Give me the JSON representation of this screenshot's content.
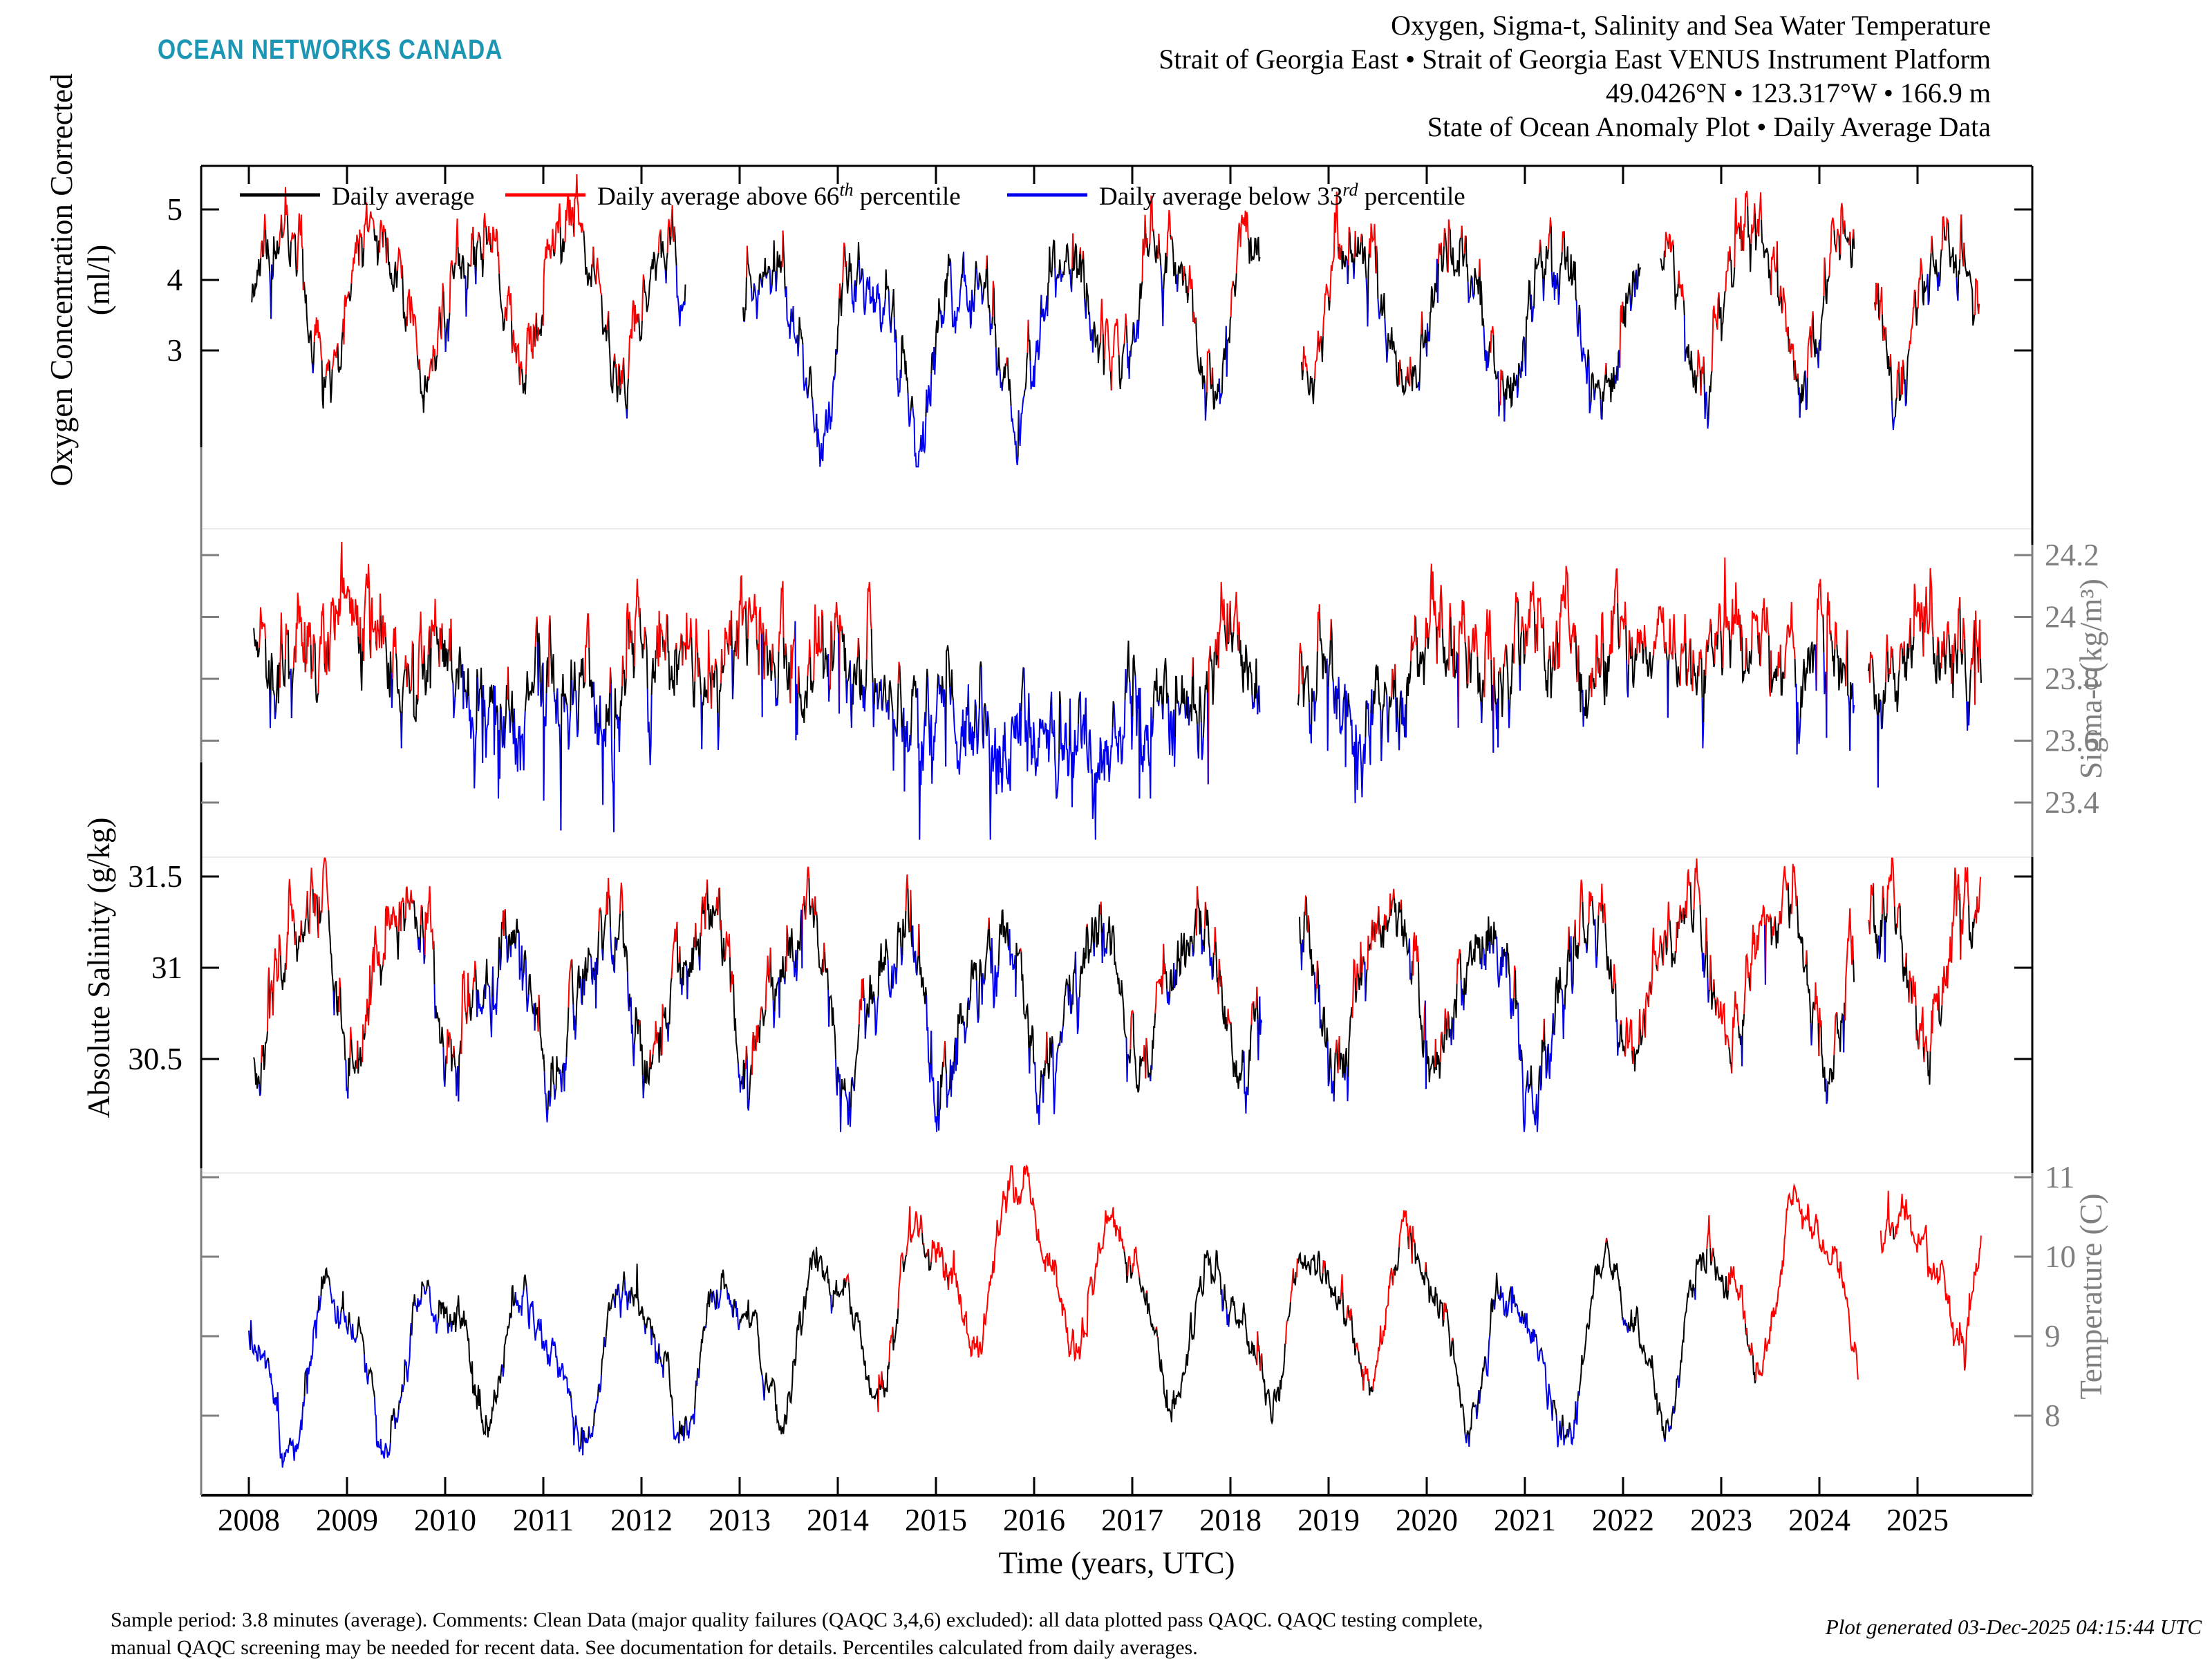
{
  "logo": {
    "text": "OCEAN NETWORKS CANADA",
    "color": "#1b96b4"
  },
  "title": {
    "lines": [
      "Oxygen, Sigma-t, Salinity and Sea Water Temperature",
      "Strait of Georgia East • Strait of Georgia East VENUS Instrument Platform",
      "49.0426°N • 123.317°W • 166.9 m",
      "State of Ocean Anomaly Plot • Daily Average Data"
    ]
  },
  "legend": {
    "items": [
      {
        "pre": "Daily average",
        "sup": "",
        "post": "",
        "color": "#000000"
      },
      {
        "pre": "Daily average above 66",
        "sup": "th",
        "post": " percentile",
        "color": "#ff0000"
      },
      {
        "pre": "Daily average below 33",
        "sup": "rd",
        "post": " percentile",
        "color": "#0000f0"
      }
    ]
  },
  "footer": {
    "left_lines": [
      "Sample period: 3.8 minutes (average). Comments: Clean Data (major quality failures (QAQC 3,4,6) excluded): all data plotted pass QAQC. QAQC testing complete,",
      "manual QAQC screening may be needed for recent data. See documentation for details. Percentiles calculated from daily averages."
    ],
    "right": "Plot generated 03-Dec-2025 04:15:44 UTC"
  },
  "colors": {
    "daily": "#000000",
    "above": "#ff0000",
    "below": "#0000f0",
    "gray_axis": "#7f7f7f",
    "separator": "#ebebeb",
    "logo": "#1b96b4"
  },
  "chart_data": {
    "type": "line",
    "note": "Four stacked daily-average time series (2008-2025.6), colored black=daily average, red=above 66th percentile, blue=below 33rd percentile. Dense daily data approximated by seasonal cycle + multi-year anomaly control points + autocorrelated daily noise.",
    "xaxis": {
      "label": "Time (years, UTC)",
      "range": [
        2007.51,
        2026.16
      ],
      "tick_labels": [
        "2008",
        "2009",
        "2010",
        "2011",
        "2012",
        "2013",
        "2014",
        "2015",
        "2016",
        "2017",
        "2018",
        "2019",
        "2020",
        "2021",
        "2022",
        "2023",
        "2024",
        "2025"
      ]
    },
    "panels": [
      {
        "name": "oxygen",
        "axis_label_lines": [
          "Oxygen Concentration Corrected",
          "(ml/l)"
        ],
        "axis_side": "left",
        "axis_color": "#000000",
        "ticks": [
          {
            "v": 5,
            "label": "5"
          },
          {
            "v": 4,
            "label": "4"
          },
          {
            "v": 3,
            "label": "3"
          }
        ],
        "visible_value_range": [
          1.2,
          5.45
        ],
        "gen": {
          "seed": 11,
          "t0": 2008.03,
          "t1": 2025.63,
          "dt": 0.007,
          "mean": 3.55,
          "harmonics": [
            {
              "a": 1.0,
              "k": 1,
              "phase": 0.3
            },
            {
              "a": 0.2,
              "k": 2,
              "phase": 0.05
            }
          ],
          "ar": 0.75,
          "sigma": 0.3,
          "spike_p": 0.02,
          "spike_amp": 0.5,
          "spike_sign": 0,
          "threshold": 0.3,
          "clip": [
            1.35,
            5.5
          ],
          "anomaly": [
            [
              2008.0,
              0.3
            ],
            [
              2009,
              0.25
            ],
            [
              2010,
              0.2
            ],
            [
              2011,
              0.25
            ],
            [
              2012,
              0.2
            ],
            [
              2013.1,
              -0.1
            ],
            [
              2013.8,
              -0.25
            ],
            [
              2014.5,
              -0.35
            ],
            [
              2015.3,
              -0.55
            ],
            [
              2016,
              -0.3
            ],
            [
              2016.8,
              0.05
            ],
            [
              2017.5,
              0.1
            ],
            [
              2018,
              0.1
            ],
            [
              2019,
              0.25
            ],
            [
              2019.8,
              0.1
            ],
            [
              2020.5,
              -0.05
            ],
            [
              2021,
              -0.15
            ],
            [
              2021.7,
              0.0
            ],
            [
              2022.5,
              0.15
            ],
            [
              2023.2,
              0.35
            ],
            [
              2023.8,
              0.25
            ],
            [
              2024.5,
              0.2
            ],
            [
              2025.2,
              0.15
            ],
            [
              2025.63,
              0.0
            ]
          ],
          "gaps": [
            [
              2012.45,
              2013.03
            ],
            [
              2018.3,
              2018.72
            ],
            [
              2022.18,
              2022.38
            ],
            [
              2024.36,
              2024.56
            ]
          ]
        }
      },
      {
        "name": "sigma-t",
        "axis_label_lines": [
          "Sigma-t (kg/m³)"
        ],
        "axis_side": "right",
        "axis_color": "#7f7f7f",
        "ticks": [
          {
            "v": 24.2,
            "label": "24.2"
          },
          {
            "v": 24,
            "label": "24"
          },
          {
            "v": 23.8,
            "label": "23.8"
          },
          {
            "v": 23.6,
            "label": "23.6"
          },
          {
            "v": 23.4,
            "label": "23.4"
          }
        ],
        "visible_value_range": [
          23.3,
          24.27
        ],
        "gen": {
          "seed": 22,
          "t0": 2008.05,
          "t1": 2025.65,
          "dt": 0.007,
          "mean": 23.8,
          "harmonics": [
            {
              "a": 0.05,
              "k": 1,
              "phase": 0.1
            },
            {
              "a": 0.03,
              "k": 2,
              "phase": 0.45
            }
          ],
          "ar": 0.7,
          "sigma": 0.09,
          "spike_p": 0.03,
          "spike_amp": 0.35,
          "spike_sign": -1,
          "threshold": 0.09,
          "clip": [
            23.28,
            24.26
          ],
          "anomaly": [
            [
              2008.05,
              0.1
            ],
            [
              2008.8,
              0.14
            ],
            [
              2009.5,
              0.1
            ],
            [
              2010.3,
              -0.06
            ],
            [
              2011,
              -0.1
            ],
            [
              2011.8,
              -0.02
            ],
            [
              2012.5,
              0.1
            ],
            [
              2013.3,
              0.12
            ],
            [
              2014.2,
              0.02
            ],
            [
              2015,
              -0.15
            ],
            [
              2015.8,
              -0.2
            ],
            [
              2016.5,
              -0.22
            ],
            [
              2017.2,
              -0.12
            ],
            [
              2017.9,
              0.02
            ],
            [
              2018.8,
              -0.02
            ],
            [
              2019.3,
              -0.15
            ],
            [
              2019.9,
              0.06
            ],
            [
              2020.6,
              0.12
            ],
            [
              2021.4,
              0.08
            ],
            [
              2022.2,
              0.1
            ],
            [
              2023,
              0.1
            ],
            [
              2023.8,
              0.06
            ],
            [
              2024.7,
              0.06
            ],
            [
              2025.3,
              0.12
            ],
            [
              2025.65,
              0.1
            ]
          ],
          "gaps": [
            [
              2018.3,
              2018.68
            ],
            [
              2024.36,
              2024.5
            ]
          ]
        }
      },
      {
        "name": "salinity",
        "axis_label_lines": [
          "Absolute Salinity (g/kg)"
        ],
        "axis_side": "left",
        "axis_color": "#000000",
        "ticks": [
          {
            "v": 31.5,
            "label": "31.5"
          },
          {
            "v": 31,
            "label": "31"
          },
          {
            "v": 30.5,
            "label": "30.5"
          }
        ],
        "visible_value_range": [
          30.15,
          31.6
        ],
        "gen": {
          "seed": 33,
          "t0": 2008.05,
          "t1": 2025.65,
          "dt": 0.007,
          "mean": 30.88,
          "harmonics": [
            {
              "a": 0.38,
              "k": 1,
              "phase": 0.62
            },
            {
              "a": 0.1,
              "k": 2,
              "phase": 0.3
            }
          ],
          "ar": 0.72,
          "sigma": 0.12,
          "spike_p": 0.025,
          "spike_amp": 0.3,
          "spike_sign": -1,
          "threshold": 0.12,
          "clip": [
            30.1,
            31.6
          ],
          "anomaly": [
            [
              2008.05,
              0.08
            ],
            [
              2009,
              0.12
            ],
            [
              2009.8,
              0.1
            ],
            [
              2010.6,
              -0.08
            ],
            [
              2011.3,
              -0.1
            ],
            [
              2012,
              0.0
            ],
            [
              2013,
              0.02
            ],
            [
              2014,
              -0.02
            ],
            [
              2015,
              -0.08
            ],
            [
              2016,
              -0.1
            ],
            [
              2016.8,
              -0.02
            ],
            [
              2017.5,
              0.0
            ],
            [
              2018.8,
              0.02
            ],
            [
              2019.5,
              0.1
            ],
            [
              2020.3,
              0.02
            ],
            [
              2020.9,
              -0.12
            ],
            [
              2021.6,
              0.05
            ],
            [
              2022.4,
              0.1
            ],
            [
              2023.2,
              0.15
            ],
            [
              2024,
              0.12
            ],
            [
              2024.8,
              0.15
            ],
            [
              2025.4,
              0.2
            ],
            [
              2025.65,
              0.18
            ]
          ],
          "gaps": [
            [
              2018.32,
              2018.7
            ],
            [
              2024.36,
              2024.5
            ]
          ]
        }
      },
      {
        "name": "temperature",
        "axis_label_lines": [
          "Temperature (C)"
        ],
        "axis_side": "right",
        "axis_color": "#7f7f7f",
        "ticks": [
          {
            "v": 11,
            "label": "11"
          },
          {
            "v": 10,
            "label": "10"
          },
          {
            "v": 9,
            "label": "9"
          },
          {
            "v": 8,
            "label": "8"
          }
        ],
        "visible_value_range": [
          7.4,
          11.1
        ],
        "gen": {
          "seed": 44,
          "t0": 2008.0,
          "t1": 2025.65,
          "dt": 0.007,
          "mean": 9.1,
          "harmonics": [
            {
              "a": 0.85,
              "k": 1,
              "phase": 0.88
            },
            {
              "a": 0.25,
              "k": 2,
              "phase": 0.7
            }
          ],
          "ar": 0.8,
          "sigma": 0.17,
          "spike_p": 0.015,
          "spike_amp": 0.4,
          "spike_sign": 0,
          "threshold": 0.33,
          "clip": [
            7.3,
            11.14
          ],
          "anomaly": [
            [
              2008.0,
              -0.55
            ],
            [
              2008.8,
              -0.45
            ],
            [
              2009.6,
              -0.3
            ],
            [
              2010.3,
              0.0
            ],
            [
              2011,
              -0.45
            ],
            [
              2011.8,
              -0.35
            ],
            [
              2012.6,
              -0.3
            ],
            [
              2013.4,
              -0.15
            ],
            [
              2014.2,
              0.1
            ],
            [
              2014.9,
              0.5
            ],
            [
              2015.5,
              0.9
            ],
            [
              2016.1,
              1.0
            ],
            [
              2016.7,
              0.6
            ],
            [
              2017.3,
              0.15
            ],
            [
              2018,
              -0.1
            ],
            [
              2018.7,
              0.1
            ],
            [
              2019.3,
              0.4
            ],
            [
              2019.9,
              0.3
            ],
            [
              2020.6,
              -0.25
            ],
            [
              2021.2,
              -0.35
            ],
            [
              2021.9,
              -0.05
            ],
            [
              2022.6,
              -0.15
            ],
            [
              2023.2,
              0.4
            ],
            [
              2023.9,
              0.9
            ],
            [
              2024.3,
              0.8
            ],
            [
              2024.9,
              0.7
            ],
            [
              2025.4,
              0.9
            ],
            [
              2025.65,
              0.8
            ]
          ],
          "gaps": [
            [
              2024.4,
              2024.62
            ]
          ]
        }
      }
    ]
  }
}
